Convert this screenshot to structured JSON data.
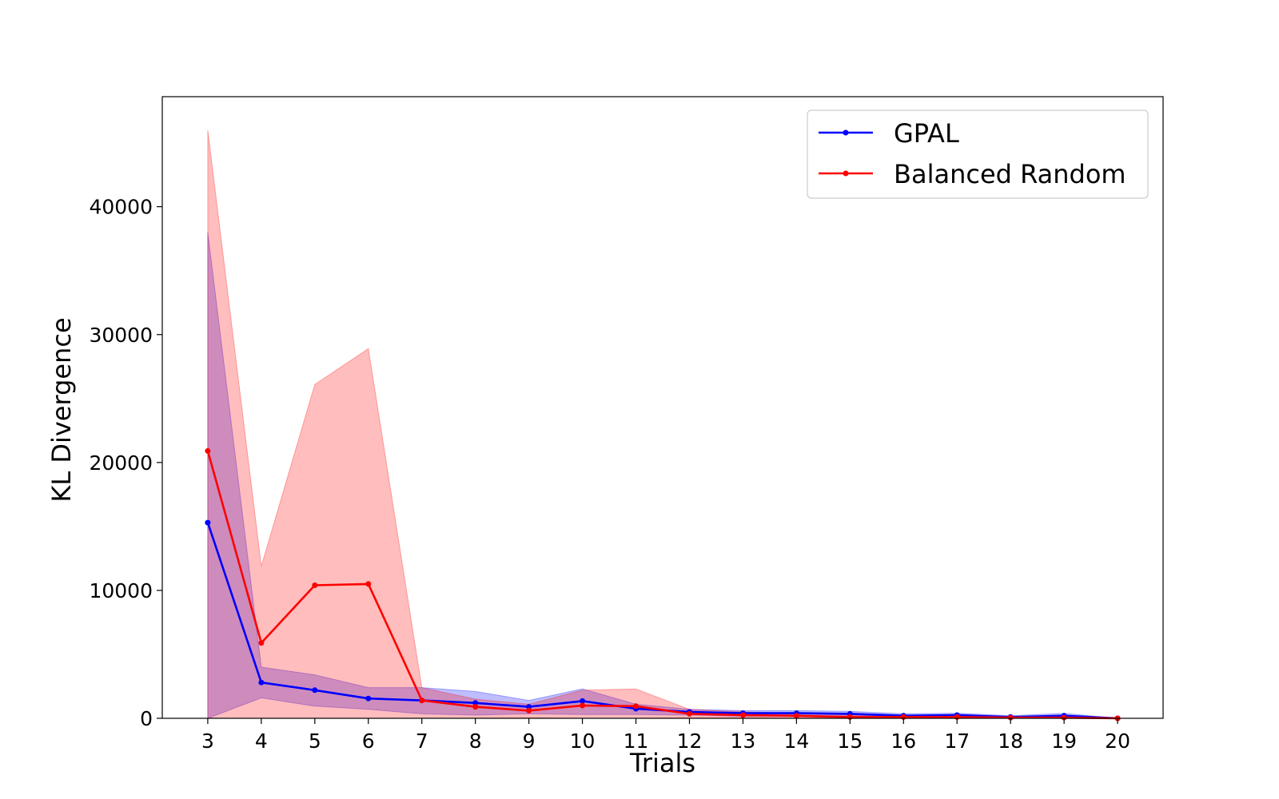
{
  "chart_data": {
    "type": "line",
    "title": "",
    "xlabel": "Trials",
    "ylabel": "KL Divergence",
    "x": [
      3,
      4,
      5,
      6,
      7,
      8,
      9,
      10,
      11,
      12,
      13,
      14,
      15,
      16,
      17,
      18,
      19,
      20
    ],
    "ylim": [
      0,
      48600
    ],
    "xlim": [
      2.15,
      20.85
    ],
    "yticks": [
      0,
      10000,
      20000,
      30000,
      40000
    ],
    "grid": false,
    "legend_position": "top-right",
    "series": [
      {
        "name": "GPAL",
        "color": "#0000ff",
        "values": [
          15300,
          2800,
          2200,
          1550,
          1400,
          1200,
          900,
          1350,
          750,
          500,
          400,
          400,
          350,
          200,
          250,
          100,
          200,
          0
        ],
        "band_upper": [
          38000,
          4000,
          3400,
          2400,
          2400,
          2100,
          1400,
          2300,
          1100,
          700,
          600,
          600,
          550,
          350,
          400,
          200,
          380,
          0
        ],
        "band_lower": [
          0,
          1600,
          950,
          700,
          350,
          250,
          350,
          300,
          300,
          250,
          150,
          150,
          100,
          50,
          50,
          50,
          50,
          0
        ]
      },
      {
        "name": "Balanced Random",
        "color": "#ff0000",
        "values": [
          20900,
          5900,
          10400,
          10500,
          1400,
          900,
          600,
          1000,
          950,
          350,
          250,
          200,
          100,
          100,
          100,
          50,
          50,
          0
        ],
        "band_upper": [
          46000,
          11900,
          26100,
          28900,
          2400,
          1500,
          1100,
          2200,
          2300,
          700,
          500,
          400,
          250,
          200,
          200,
          100,
          100,
          0
        ],
        "band_lower": [
          0,
          0,
          0,
          0,
          0,
          0,
          50,
          0,
          0,
          50,
          50,
          50,
          0,
          0,
          0,
          0,
          0,
          0
        ]
      }
    ]
  }
}
